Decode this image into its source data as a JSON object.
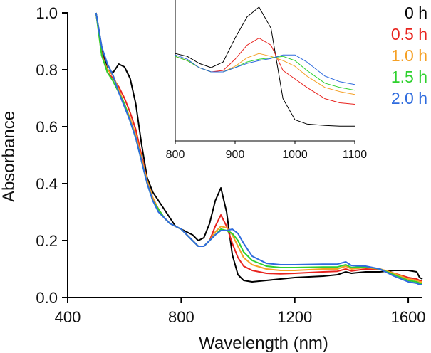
{
  "chart_data": [
    {
      "id": "main",
      "type": "line",
      "title": "",
      "xlabel": "Wavelength (nm)",
      "ylabel": "Absorbance",
      "xlim": [
        400,
        1650
      ],
      "ylim": [
        0.0,
        1.0
      ],
      "xticks": [
        400,
        800,
        1200,
        1600
      ],
      "yticks": [
        0.0,
        0.2,
        0.4,
        0.6,
        0.8,
        1.0
      ],
      "xtick_labels": [
        "400",
        "800",
        "1200",
        "1600"
      ],
      "ytick_labels": [
        "0.0",
        "0.2",
        "0.4",
        "0.6",
        "0.8",
        "1.0"
      ],
      "grid": false,
      "legend": "top-right",
      "series": [
        {
          "name": "0 h",
          "color": "#000000",
          "x": [
            500,
            520,
            540,
            560,
            580,
            600,
            620,
            640,
            660,
            680,
            700,
            720,
            740,
            760,
            780,
            800,
            820,
            840,
            860,
            880,
            900,
            920,
            940,
            960,
            980,
            1000,
            1020,
            1050,
            1100,
            1150,
            1200,
            1300,
            1350,
            1380,
            1400,
            1450,
            1500,
            1550,
            1600,
            1630,
            1640,
            1650
          ],
          "y": [
            1.0,
            0.88,
            0.8,
            0.79,
            0.82,
            0.81,
            0.77,
            0.68,
            0.54,
            0.42,
            0.37,
            0.34,
            0.31,
            0.28,
            0.25,
            0.24,
            0.23,
            0.22,
            0.2,
            0.21,
            0.26,
            0.34,
            0.385,
            0.3,
            0.15,
            0.08,
            0.06,
            0.055,
            0.06,
            0.065,
            0.07,
            0.075,
            0.08,
            0.09,
            0.085,
            0.09,
            0.09,
            0.095,
            0.095,
            0.09,
            0.07,
            0.065
          ]
        },
        {
          "name": "0.5 h",
          "color": "#e8231e",
          "x": [
            500,
            520,
            540,
            560,
            580,
            600,
            620,
            640,
            660,
            680,
            700,
            720,
            740,
            760,
            780,
            800,
            820,
            840,
            860,
            880,
            900,
            920,
            940,
            960,
            980,
            1000,
            1020,
            1050,
            1100,
            1150,
            1200,
            1300,
            1350,
            1380,
            1400,
            1450,
            1500,
            1550,
            1600,
            1630,
            1640,
            1650
          ],
          "y": [
            1.0,
            0.86,
            0.79,
            0.77,
            0.74,
            0.7,
            0.65,
            0.59,
            0.5,
            0.41,
            0.35,
            0.31,
            0.28,
            0.26,
            0.25,
            0.24,
            0.22,
            0.2,
            0.18,
            0.18,
            0.2,
            0.25,
            0.29,
            0.25,
            0.19,
            0.14,
            0.11,
            0.095,
            0.085,
            0.083,
            0.085,
            0.09,
            0.092,
            0.1,
            0.093,
            0.1,
            0.1,
            0.085,
            0.07,
            0.065,
            0.06,
            0.06
          ]
        },
        {
          "name": "1.0 h",
          "color": "#f5a025",
          "x": [
            500,
            520,
            540,
            560,
            580,
            600,
            620,
            640,
            660,
            680,
            700,
            720,
            740,
            760,
            780,
            800,
            820,
            840,
            860,
            880,
            900,
            920,
            940,
            960,
            980,
            1000,
            1020,
            1050,
            1100,
            1150,
            1200,
            1300,
            1350,
            1380,
            1400,
            1450,
            1500,
            1550,
            1600,
            1630,
            1640,
            1650
          ],
          "y": [
            1.0,
            0.85,
            0.8,
            0.78,
            0.73,
            0.68,
            0.63,
            0.57,
            0.49,
            0.41,
            0.35,
            0.31,
            0.28,
            0.26,
            0.25,
            0.24,
            0.22,
            0.2,
            0.18,
            0.18,
            0.2,
            0.23,
            0.25,
            0.245,
            0.22,
            0.18,
            0.14,
            0.115,
            0.1,
            0.095,
            0.095,
            0.1,
            0.1,
            0.11,
            0.1,
            0.105,
            0.1,
            0.085,
            0.065,
            0.06,
            0.055,
            0.055
          ]
        },
        {
          "name": "1.5 h",
          "color": "#2ed12e",
          "x": [
            500,
            520,
            540,
            560,
            580,
            600,
            620,
            640,
            660,
            680,
            700,
            720,
            740,
            760,
            780,
            800,
            820,
            840,
            860,
            880,
            900,
            920,
            940,
            960,
            980,
            1000,
            1020,
            1050,
            1100,
            1150,
            1200,
            1300,
            1350,
            1380,
            1400,
            1450,
            1500,
            1550,
            1600,
            1630,
            1640,
            1650
          ],
          "y": [
            1.0,
            0.85,
            0.79,
            0.76,
            0.72,
            0.68,
            0.62,
            0.56,
            0.48,
            0.4,
            0.34,
            0.31,
            0.28,
            0.26,
            0.25,
            0.24,
            0.22,
            0.2,
            0.18,
            0.18,
            0.2,
            0.22,
            0.24,
            0.235,
            0.225,
            0.2,
            0.16,
            0.13,
            0.11,
            0.105,
            0.105,
            0.107,
            0.107,
            0.115,
            0.105,
            0.108,
            0.1,
            0.08,
            0.06,
            0.055,
            0.05,
            0.05
          ]
        },
        {
          "name": "2.0 h",
          "color": "#2e6bde",
          "x": [
            500,
            520,
            540,
            560,
            580,
            600,
            620,
            640,
            660,
            680,
            700,
            720,
            740,
            760,
            780,
            800,
            820,
            840,
            860,
            880,
            900,
            920,
            940,
            960,
            980,
            1000,
            1020,
            1050,
            1100,
            1150,
            1200,
            1300,
            1350,
            1380,
            1400,
            1450,
            1500,
            1550,
            1600,
            1630,
            1640,
            1650
          ],
          "y": [
            1.0,
            0.88,
            0.82,
            0.78,
            0.72,
            0.67,
            0.62,
            0.56,
            0.48,
            0.4,
            0.34,
            0.3,
            0.28,
            0.26,
            0.25,
            0.24,
            0.22,
            0.2,
            0.18,
            0.18,
            0.2,
            0.22,
            0.235,
            0.235,
            0.24,
            0.225,
            0.19,
            0.145,
            0.12,
            0.115,
            0.115,
            0.117,
            0.117,
            0.125,
            0.112,
            0.11,
            0.1,
            0.075,
            0.055,
            0.05,
            0.045,
            0.045
          ]
        }
      ]
    },
    {
      "id": "inset",
      "type": "line",
      "title": "",
      "xlabel": "",
      "ylabel": "",
      "xlim": [
        800,
        1100
      ],
      "ylim": [
        0.0,
        1.0
      ],
      "xticks": [
        800,
        900,
        1000,
        1100
      ],
      "xtick_labels": [
        "800",
        "900",
        "1000",
        "1100"
      ],
      "grid": false,
      "series": [
        {
          "name": "0 h",
          "color": "#000000",
          "x": [
            800,
            820,
            840,
            860,
            880,
            900,
            920,
            940,
            960,
            980,
            1000,
            1020,
            1050,
            1075,
            1100
          ],
          "y": [
            0.62,
            0.6,
            0.55,
            0.52,
            0.56,
            0.73,
            0.88,
            0.95,
            0.8,
            0.3,
            0.15,
            0.12,
            0.11,
            0.105,
            0.105
          ]
        },
        {
          "name": "0.5 h",
          "color": "#e8231e",
          "x": [
            800,
            820,
            840,
            860,
            880,
            900,
            920,
            940,
            960,
            980,
            1000,
            1020,
            1050,
            1075,
            1100
          ],
          "y": [
            0.6,
            0.57,
            0.52,
            0.49,
            0.5,
            0.58,
            0.68,
            0.73,
            0.68,
            0.5,
            0.44,
            0.38,
            0.3,
            0.27,
            0.26
          ]
        },
        {
          "name": "1.0 h",
          "color": "#f5a025",
          "x": [
            800,
            820,
            840,
            860,
            880,
            900,
            920,
            940,
            960,
            980,
            1000,
            1020,
            1050,
            1075,
            1100
          ],
          "y": [
            0.6,
            0.57,
            0.52,
            0.49,
            0.49,
            0.53,
            0.59,
            0.62,
            0.6,
            0.57,
            0.53,
            0.46,
            0.38,
            0.35,
            0.33
          ]
        },
        {
          "name": "1.5 h",
          "color": "#2ed12e",
          "x": [
            800,
            820,
            840,
            860,
            880,
            900,
            920,
            940,
            960,
            980,
            1000,
            1020,
            1050,
            1075,
            1100
          ],
          "y": [
            0.6,
            0.57,
            0.52,
            0.49,
            0.49,
            0.52,
            0.56,
            0.58,
            0.59,
            0.6,
            0.57,
            0.5,
            0.41,
            0.38,
            0.36
          ]
        },
        {
          "name": "2.0 h",
          "color": "#2e6bde",
          "x": [
            800,
            820,
            840,
            860,
            880,
            900,
            920,
            940,
            960,
            980,
            1000,
            1020,
            1050,
            1075,
            1100
          ],
          "y": [
            0.61,
            0.58,
            0.52,
            0.49,
            0.49,
            0.52,
            0.55,
            0.57,
            0.585,
            0.61,
            0.61,
            0.56,
            0.46,
            0.42,
            0.4
          ]
        }
      ]
    }
  ],
  "legend": {
    "items": [
      {
        "label": "0 h",
        "color": "#000000"
      },
      {
        "label": "0.5 h",
        "color": "#e8231e"
      },
      {
        "label": "1.0 h",
        "color": "#f5a025"
      },
      {
        "label": "1.5 h",
        "color": "#2ed12e"
      },
      {
        "label": "2.0 h",
        "color": "#2e6bde"
      }
    ]
  }
}
